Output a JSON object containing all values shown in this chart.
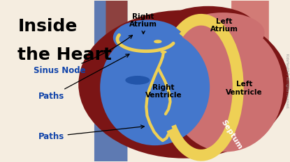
{
  "bg_color": "#f5ede0",
  "title_line1": "Inside",
  "title_line2": "the Heart",
  "title_fontsize": 18,
  "title_color": "#000000",
  "copyright": "KidsHealth® All rights reserved.",
  "heart_dark_outer": "#7B1515",
  "heart_right_fill": "#4477CC",
  "heart_left_fill": "#CC7070",
  "septum_yellow": "#EED055",
  "paths_yellow": "#EED055",
  "aorta_red": "#993322",
  "vein_blue": "#4466AA",
  "label_blue": "#1144AA"
}
